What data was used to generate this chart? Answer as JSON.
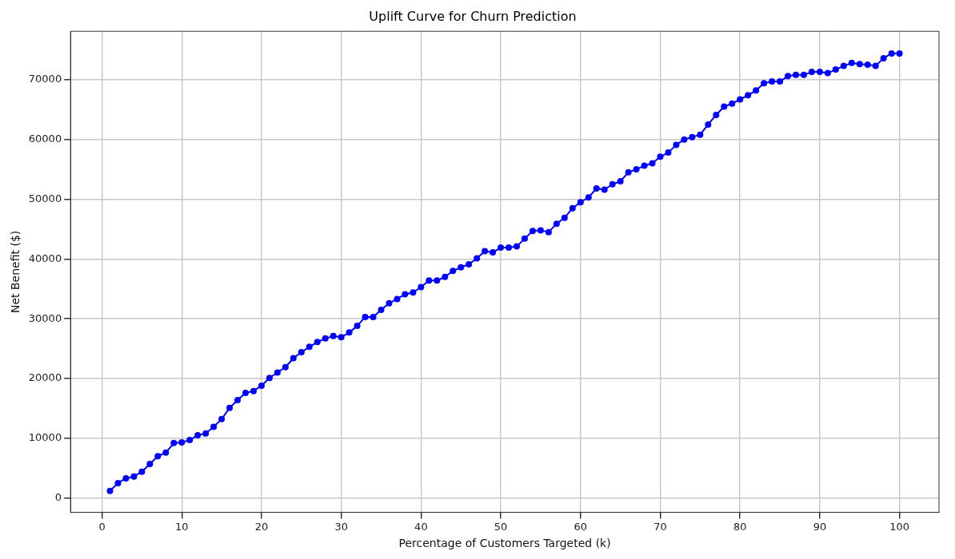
{
  "chart_data": {
    "type": "line",
    "title": "Uplift Curve for Churn Prediction",
    "xlabel": "Percentage of Customers Targeted (k)",
    "ylabel": "Net Benefit ($)",
    "x": [
      1,
      2,
      3,
      4,
      5,
      6,
      7,
      8,
      9,
      10,
      11,
      12,
      13,
      14,
      15,
      16,
      17,
      18,
      19,
      20,
      21,
      22,
      23,
      24,
      25,
      26,
      27,
      28,
      29,
      30,
      31,
      32,
      33,
      34,
      35,
      36,
      37,
      38,
      39,
      40,
      41,
      42,
      43,
      44,
      45,
      46,
      47,
      48,
      49,
      50,
      51,
      52,
      53,
      54,
      55,
      56,
      57,
      58,
      59,
      60,
      61,
      62,
      63,
      64,
      65,
      66,
      67,
      68,
      69,
      70,
      71,
      72,
      73,
      74,
      75,
      76,
      77,
      78,
      79,
      80,
      81,
      82,
      83,
      84,
      85,
      86,
      87,
      88,
      89,
      90,
      91,
      92,
      93,
      94,
      95,
      96,
      97,
      98,
      99,
      100
    ],
    "series": [
      {
        "color": "#0000ff",
        "values": [
          1200,
          2500,
          3300,
          3600,
          4400,
          5700,
          7000,
          7600,
          9200,
          9300,
          9700,
          10500,
          10800,
          11900,
          13200,
          15100,
          16400,
          17600,
          17900,
          18800,
          20100,
          21000,
          21900,
          23400,
          24400,
          25300,
          26100,
          26700,
          27100,
          26900,
          27700,
          28800,
          30300,
          30300,
          31500,
          32600,
          33300,
          34100,
          34400,
          35300,
          36400,
          36400,
          37000,
          38000,
          38600,
          39100,
          40100,
          41300,
          41100,
          41900,
          41900,
          42100,
          43400,
          44700,
          44800,
          44500,
          45900,
          46900,
          48500,
          49500,
          50300,
          51800,
          51600,
          52500,
          53000,
          54500,
          55000,
          55600,
          56000,
          57100,
          57800,
          59100,
          60000,
          60400,
          60800,
          62500,
          64100,
          65500,
          66000,
          66700,
          67400,
          68200,
          69400,
          69700,
          69700,
          70600,
          70800,
          70800,
          71300,
          71300,
          71100,
          71700,
          72300,
          72800,
          72600,
          72500,
          72300,
          73600,
          74400,
          74400
        ]
      }
    ],
    "xlim": [
      -3.95,
      104.95
    ],
    "ylim": [
      -2400,
      78100
    ],
    "xticks": [
      0,
      10,
      20,
      30,
      40,
      50,
      60,
      70,
      80,
      90,
      100
    ],
    "yticks": [
      0,
      10000,
      20000,
      30000,
      40000,
      50000,
      60000,
      70000
    ],
    "grid": true,
    "marker": "circle",
    "line_style": "solid",
    "legend": false
  }
}
